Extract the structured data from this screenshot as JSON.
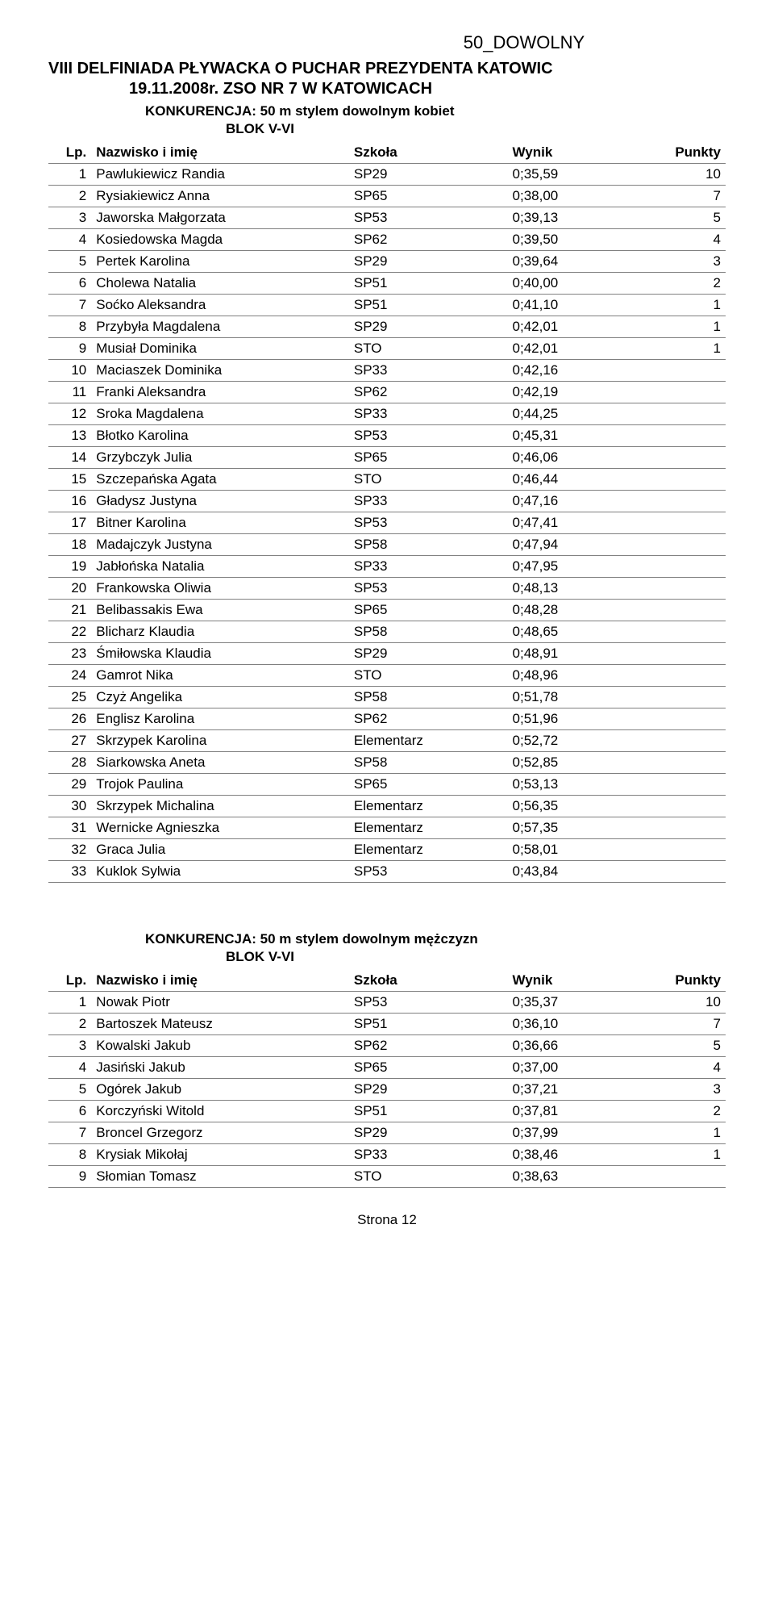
{
  "header_label": "50_DOWOLNY",
  "title_line1": "VIII DELFINIADA PŁYWACKA O PUCHAR PREZYDENTA KATOWIC",
  "title_line2": "19.11.2008r. ZSO NR 7 W KATOWICACH",
  "section1": {
    "konkurencja": "KONKURENCJA: 50 m stylem dowolnym kobiet",
    "blok": "BLOK V-VI",
    "columns": {
      "lp": "Lp.",
      "name": "Nazwisko i imię",
      "school": "Szkoła",
      "wynik": "Wynik",
      "punkty": "Punkty"
    },
    "rows": [
      {
        "lp": "1",
        "name": "Pawlukiewicz Randia",
        "school": "SP29",
        "wynik": "0;35,59",
        "punkty": "10"
      },
      {
        "lp": "2",
        "name": "Rysiakiewicz Anna",
        "school": "SP65",
        "wynik": "0;38,00",
        "punkty": "7"
      },
      {
        "lp": "3",
        "name": "Jaworska Małgorzata",
        "school": "SP53",
        "wynik": "0;39,13",
        "punkty": "5"
      },
      {
        "lp": "4",
        "name": "Kosiedowska Magda",
        "school": "SP62",
        "wynik": "0;39,50",
        "punkty": "4"
      },
      {
        "lp": "5",
        "name": "Pertek Karolina",
        "school": "SP29",
        "wynik": "0;39,64",
        "punkty": "3"
      },
      {
        "lp": "6",
        "name": "Cholewa Natalia",
        "school": "SP51",
        "wynik": "0;40,00",
        "punkty": "2"
      },
      {
        "lp": "7",
        "name": "Soćko Aleksandra",
        "school": "SP51",
        "wynik": "0;41,10",
        "punkty": "1"
      },
      {
        "lp": "8",
        "name": "Przybyła Magdalena",
        "school": "SP29",
        "wynik": "0;42,01",
        "punkty": "1"
      },
      {
        "lp": "9",
        "name": "Musiał Dominika",
        "school": "STO",
        "wynik": "0;42,01",
        "punkty": "1"
      },
      {
        "lp": "10",
        "name": "Maciaszek Dominika",
        "school": "SP33",
        "wynik": "0;42,16",
        "punkty": ""
      },
      {
        "lp": "11",
        "name": "Franki Aleksandra",
        "school": "SP62",
        "wynik": "0;42,19",
        "punkty": ""
      },
      {
        "lp": "12",
        "name": "Sroka Magdalena",
        "school": "SP33",
        "wynik": "0;44,25",
        "punkty": ""
      },
      {
        "lp": "13",
        "name": "Błotko Karolina",
        "school": "SP53",
        "wynik": "0;45,31",
        "punkty": ""
      },
      {
        "lp": "14",
        "name": "Grzybczyk Julia",
        "school": "SP65",
        "wynik": "0;46,06",
        "punkty": ""
      },
      {
        "lp": "15",
        "name": "Szczepańska Agata",
        "school": "STO",
        "wynik": "0;46,44",
        "punkty": ""
      },
      {
        "lp": "16",
        "name": "Gładysz Justyna",
        "school": "SP33",
        "wynik": "0;47,16",
        "punkty": ""
      },
      {
        "lp": "17",
        "name": "Bitner Karolina",
        "school": "SP53",
        "wynik": "0;47,41",
        "punkty": ""
      },
      {
        "lp": "18",
        "name": "Madajczyk Justyna",
        "school": "SP58",
        "wynik": "0;47,94",
        "punkty": ""
      },
      {
        "lp": "19",
        "name": "Jabłońska Natalia",
        "school": "SP33",
        "wynik": "0;47,95",
        "punkty": ""
      },
      {
        "lp": "20",
        "name": "Frankowska Oliwia",
        "school": "SP53",
        "wynik": "0;48,13",
        "punkty": ""
      },
      {
        "lp": "21",
        "name": "Belibassakis Ewa",
        "school": "SP65",
        "wynik": "0;48,28",
        "punkty": ""
      },
      {
        "lp": "22",
        "name": "Blicharz Klaudia",
        "school": "SP58",
        "wynik": "0;48,65",
        "punkty": ""
      },
      {
        "lp": "23",
        "name": "Śmiłowska Klaudia",
        "school": "SP29",
        "wynik": "0;48,91",
        "punkty": ""
      },
      {
        "lp": "24",
        "name": "Gamrot Nika",
        "school": "STO",
        "wynik": "0;48,96",
        "punkty": ""
      },
      {
        "lp": "25",
        "name": "Czyż Angelika",
        "school": "SP58",
        "wynik": "0;51,78",
        "punkty": ""
      },
      {
        "lp": "26",
        "name": "Englisz Karolina",
        "school": "SP62",
        "wynik": "0;51,96",
        "punkty": ""
      },
      {
        "lp": "27",
        "name": "Skrzypek Karolina",
        "school": "Elementarz",
        "wynik": "0;52,72",
        "punkty": ""
      },
      {
        "lp": "28",
        "name": "Siarkowska Aneta",
        "school": "SP58",
        "wynik": "0;52,85",
        "punkty": ""
      },
      {
        "lp": "29",
        "name": "Trojok Paulina",
        "school": "SP65",
        "wynik": "0;53,13",
        "punkty": ""
      },
      {
        "lp": "30",
        "name": "Skrzypek Michalina",
        "school": "Elementarz",
        "wynik": "0;56,35",
        "punkty": ""
      },
      {
        "lp": "31",
        "name": "Wernicke Agnieszka",
        "school": "Elementarz",
        "wynik": "0;57,35",
        "punkty": ""
      },
      {
        "lp": "32",
        "name": "Graca Julia",
        "school": "Elementarz",
        "wynik": "0;58,01",
        "punkty": ""
      },
      {
        "lp": "33",
        "name": "Kuklok Sylwia",
        "school": "SP53",
        "wynik": "0;43,84",
        "punkty": ""
      }
    ]
  },
  "section2": {
    "konkurencja": "KONKURENCJA: 50 m stylem dowolnym mężczyzn",
    "blok": "BLOK V-VI",
    "columns": {
      "lp": "Lp.",
      "name": "Nazwisko i imię",
      "school": "Szkoła",
      "wynik": "Wynik",
      "punkty": "Punkty"
    },
    "rows": [
      {
        "lp": "1",
        "name": "Nowak Piotr",
        "school": "SP53",
        "wynik": "0;35,37",
        "punkty": "10"
      },
      {
        "lp": "2",
        "name": "Bartoszek Mateusz",
        "school": "SP51",
        "wynik": "0;36,10",
        "punkty": "7"
      },
      {
        "lp": "3",
        "name": "Kowalski Jakub",
        "school": "SP62",
        "wynik": "0;36,66",
        "punkty": "5"
      },
      {
        "lp": "4",
        "name": "Jasiński Jakub",
        "school": "SP65",
        "wynik": "0;37,00",
        "punkty": "4"
      },
      {
        "lp": "5",
        "name": "Ogórek Jakub",
        "school": "SP29",
        "wynik": "0;37,21",
        "punkty": "3"
      },
      {
        "lp": "6",
        "name": "Korczyński Witold",
        "school": "SP51",
        "wynik": "0;37,81",
        "punkty": "2"
      },
      {
        "lp": "7",
        "name": "Broncel Grzegorz",
        "school": "SP29",
        "wynik": "0;37,99",
        "punkty": "1"
      },
      {
        "lp": "8",
        "name": "Krysiak Mikołaj",
        "school": "SP33",
        "wynik": "0;38,46",
        "punkty": "1"
      },
      {
        "lp": "9",
        "name": "Słomian Tomasz",
        "school": "STO",
        "wynik": "0;38,63",
        "punkty": ""
      }
    ]
  },
  "footer": "Strona 12"
}
